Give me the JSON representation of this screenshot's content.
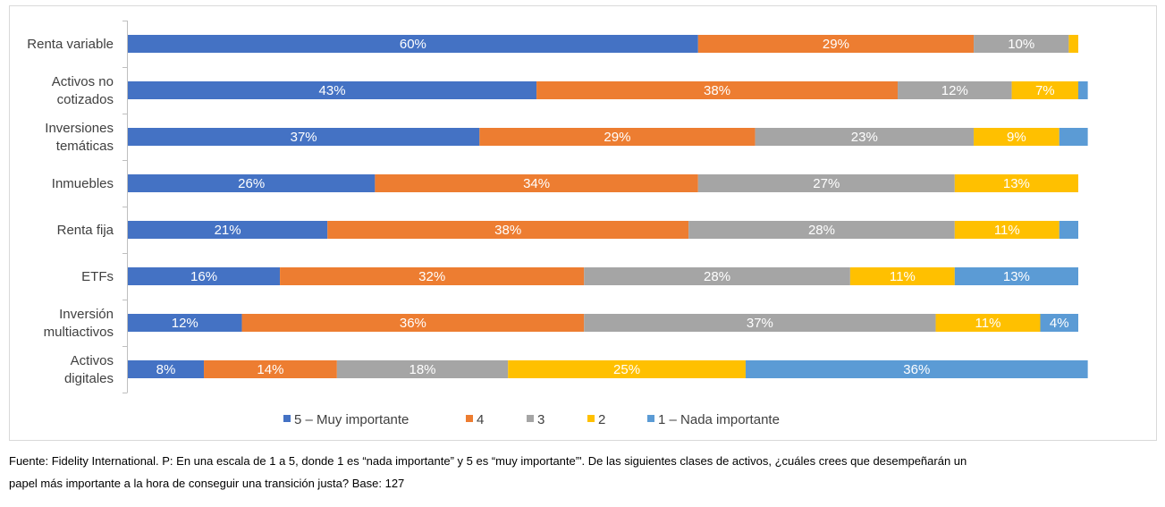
{
  "chart_data": {
    "type": "bar",
    "orientation": "horizontal",
    "stacked": true,
    "categories": [
      [
        "Renta variable"
      ],
      [
        "Activos no",
        "cotizados"
      ],
      [
        "Inversiones",
        "temáticas"
      ],
      [
        "Inmuebles"
      ],
      [
        "Renta fija"
      ],
      [
        "ETFs"
      ],
      [
        "Inversión",
        "multiactivos"
      ],
      [
        "Activos",
        "digitales"
      ]
    ],
    "series": [
      {
        "name": "5 – Muy importante",
        "color": "#4472c4",
        "values": [
          60,
          43,
          37,
          26,
          21,
          16,
          12,
          8
        ],
        "labels": [
          "60%",
          "43%",
          "37%",
          "26%",
          "21%",
          "16%",
          "12%",
          "8%"
        ]
      },
      {
        "name": "4",
        "color": "#ed7d31",
        "values": [
          29,
          38,
          29,
          34,
          38,
          32,
          36,
          14
        ],
        "labels": [
          "29%",
          "38%",
          "29%",
          "34%",
          "38%",
          "32%",
          "36%",
          "14%"
        ]
      },
      {
        "name": "3",
        "color": "#a5a5a5",
        "values": [
          10,
          12,
          23,
          27,
          28,
          28,
          37,
          18
        ],
        "labels": [
          "10%",
          "12%",
          "23%",
          "27%",
          "28%",
          "28%",
          "37%",
          "18%"
        ]
      },
      {
        "name": "2",
        "color": "#ffc000",
        "values": [
          1,
          7,
          9,
          13,
          11,
          11,
          11,
          25
        ],
        "labels": [
          "",
          "7%",
          "9%",
          "13%",
          "11%",
          "11%",
          "11%",
          "25%"
        ]
      },
      {
        "name": "1 – Nada importante",
        "color": "#5b9bd5",
        "values": [
          0,
          1,
          3,
          0,
          2,
          13,
          4,
          36
        ],
        "labels": [
          "",
          "",
          "",
          "",
          "",
          "13%",
          "4%",
          "36%"
        ]
      }
    ],
    "xlim": [
      0,
      100
    ],
    "grid": false,
    "legend_position": "bottom"
  },
  "footnote": {
    "line1": "Fuente: Fidelity International. P: En una escala de 1 a 5, donde 1 es “nada importante” y 5 es “muy importante”'. De las siguientes clases de activos, ¿cuáles crees que desempeñarán un",
    "line2": "papel más importante a la hora de conseguir una transición justa? Base: 127"
  }
}
